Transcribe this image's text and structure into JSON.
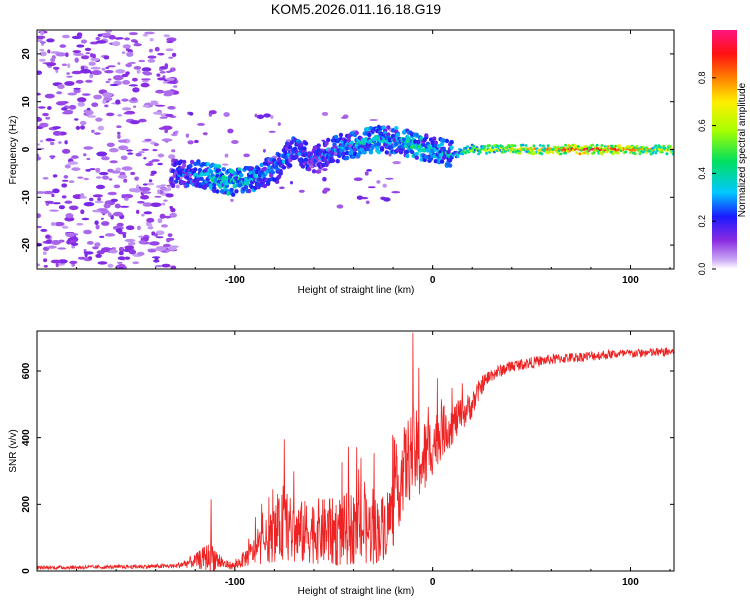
{
  "title": "KOM5.2026.011.16.18.G19",
  "colorbar": {
    "label": "Normalized spectral amplitude",
    "ticks": [
      "0.0",
      "0.2",
      "0.4",
      "0.6",
      "0.8"
    ],
    "tick_values": [
      0.0,
      0.2,
      0.4,
      0.6,
      0.8
    ],
    "range": [
      0,
      1
    ]
  },
  "chart_data": [
    {
      "type": "heatmap",
      "title": "",
      "xlabel": "Height of straight line (km)",
      "ylabel": "Frequency (Hz)",
      "xlim": [
        -200,
        122
      ],
      "ylim": [
        -25,
        25
      ],
      "x_ticks": [
        "-100",
        "0",
        "100"
      ],
      "x_tick_values": [
        -100,
        0,
        100
      ],
      "y_ticks": [
        "-20",
        "-10",
        "0",
        "10",
        "20"
      ],
      "y_tick_values": [
        -20,
        -10,
        0,
        10,
        20
      ],
      "ridge": {
        "description_points_x": [
          -130,
          -120,
          -110,
          -100,
          -90,
          -80,
          -70,
          -60,
          -50,
          -40,
          -30,
          -20,
          -10,
          0,
          10,
          20,
          40,
          60,
          80,
          100,
          122
        ],
        "description_points_freq": [
          -5,
          -5,
          -6,
          -7,
          -6,
          -4,
          0,
          -2,
          0,
          1,
          2,
          2,
          1,
          0,
          -1,
          0,
          0,
          0,
          0,
          0,
          0
        ],
        "amplitude": [
          0.25,
          0.3,
          0.4,
          0.45,
          0.35,
          0.3,
          0.3,
          0.25,
          0.3,
          0.35,
          0.4,
          0.35,
          0.45,
          0.35,
          0.4,
          0.6,
          0.7,
          0.8,
          0.95,
          0.8,
          0.7
        ]
      }
    },
    {
      "type": "line",
      "title": "",
      "xlabel": "Height of straight line (km)",
      "ylabel": "SNR (v/v)",
      "xlim": [
        -200,
        122
      ],
      "ylim": [
        0,
        720
      ],
      "x_ticks": [
        "-100",
        "0",
        "100"
      ],
      "x_tick_values": [
        -100,
        0,
        100
      ],
      "y_ticks": [
        "0",
        "200",
        "400",
        "600"
      ],
      "y_tick_values": [
        0,
        200,
        400,
        600
      ],
      "series": [
        {
          "name": "SNR",
          "color": "#ee2222",
          "x": [
            -200,
            -160,
            -130,
            -120,
            -112,
            -105,
            -100,
            -90,
            -80,
            -75,
            -70,
            -60,
            -50,
            -40,
            -30,
            -25,
            -20,
            -15,
            -10,
            -5,
            0,
            5,
            10,
            15,
            20,
            25,
            30,
            40,
            50,
            60,
            70,
            80,
            90,
            100,
            110,
            122
          ],
          "mean": [
            10,
            12,
            15,
            30,
            45,
            20,
            15,
            60,
            110,
            140,
            110,
            120,
            115,
            130,
            120,
            130,
            180,
            300,
            360,
            330,
            380,
            420,
            440,
            470,
            500,
            560,
            590,
            615,
            625,
            635,
            640,
            645,
            650,
            652,
            655,
            658
          ],
          "spread": [
            8,
            8,
            10,
            30,
            70,
            20,
            15,
            60,
            120,
            150,
            140,
            140,
            150,
            160,
            150,
            140,
            160,
            180,
            200,
            180,
            130,
            110,
            90,
            70,
            60,
            40,
            30,
            25,
            25,
            22,
            22,
            22,
            20,
            20,
            20,
            20
          ],
          "peaks": [
            [
              -112,
              215
            ],
            [
              -75,
              395
            ],
            [
              -10,
              715
            ],
            [
              -7,
              610
            ]
          ]
        }
      ]
    }
  ]
}
